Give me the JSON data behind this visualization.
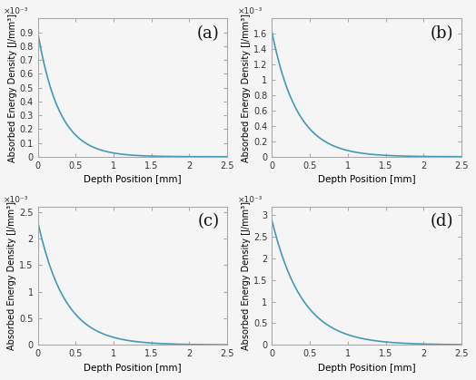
{
  "subplots": [
    {
      "label": "(a)",
      "peak": 0.0009,
      "decay": 3.5,
      "ylim": [
        0,
        0.001
      ],
      "ytick_values": [
        0.0,
        0.0001,
        0.0002,
        0.0003,
        0.0004,
        0.0005,
        0.0006,
        0.0007,
        0.0008,
        0.0009
      ],
      "ytick_labels": [
        "0",
        "0.1",
        "0.2",
        "0.3",
        "0.4",
        "0.5",
        "0.6",
        "0.7",
        "0.8",
        "0.9"
      ],
      "sci_exp": "×10⁻³"
    },
    {
      "label": "(b)",
      "peak": 0.00162,
      "decay": 3.0,
      "ylim": [
        0,
        0.0018
      ],
      "ytick_values": [
        0.0,
        0.0002,
        0.0004,
        0.0006,
        0.0008,
        0.001,
        0.0012,
        0.0014,
        0.0016
      ],
      "ytick_labels": [
        "0",
        "0.2",
        "0.4",
        "0.6",
        "0.8",
        "1",
        "1.2",
        "1.4",
        "1.6"
      ],
      "sci_exp": "×10⁻³"
    },
    {
      "label": "(c)",
      "peak": 0.00232,
      "decay": 2.8,
      "ylim": [
        0,
        0.0026
      ],
      "ytick_values": [
        0.0,
        0.0005,
        0.001,
        0.0015,
        0.002,
        0.0025
      ],
      "ytick_labels": [
        "0",
        "0.5",
        "1",
        "1.5",
        "2",
        "2.5"
      ],
      "sci_exp": "×10⁻³"
    },
    {
      "label": "(d)",
      "peak": 0.00288,
      "decay": 2.5,
      "ylim": [
        0,
        0.0032
      ],
      "ytick_values": [
        0.0,
        0.0005,
        0.001,
        0.0015,
        0.002,
        0.0025,
        0.003
      ],
      "ytick_labels": [
        "0",
        "0.5",
        "1",
        "1.5",
        "2",
        "2.5",
        "3"
      ],
      "sci_exp": "×10⁻³"
    }
  ],
  "xlim": [
    0,
    2.5
  ],
  "xtick_values": [
    0,
    0.5,
    1.0,
    1.5,
    2.0,
    2.5
  ],
  "xtick_labels": [
    "0",
    "0.5",
    "1",
    "1.5",
    "2",
    "2.5"
  ],
  "xlabel": "Depth Position [mm]",
  "ylabel": "Absorbed Energy Density [J/mm³]",
  "line_color": "#4499BB",
  "line_width": 1.2,
  "background_color": "#f5f5f5",
  "spine_color": "#aaaaaa",
  "tick_font_size": 7,
  "label_font_size": 7.5,
  "sublabel_font_size": 13
}
